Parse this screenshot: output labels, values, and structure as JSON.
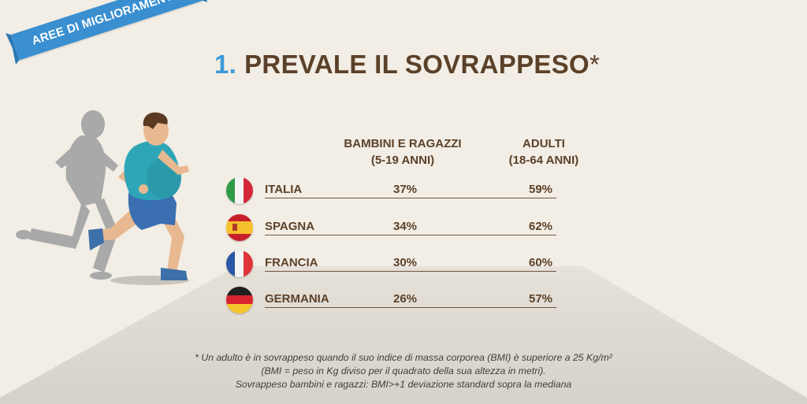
{
  "ribbon": {
    "label": "AREE DI MIGLIORAMENTO"
  },
  "title": {
    "number": "1.",
    "text": "PREVALE IL SOVRAPPESO",
    "asterisk": "*"
  },
  "columns": {
    "children": [
      "BAMBINI E RAGAZZI",
      "(5-19 ANNI)"
    ],
    "adults": [
      "ADULTI",
      "(18-64 ANNI)"
    ]
  },
  "rows": [
    {
      "country": "ITALIA",
      "children": "37%",
      "adults": "59%",
      "flag": "italy-flag-icon"
    },
    {
      "country": "SPAGNA",
      "children": "34%",
      "adults": "62%",
      "flag": "spain-flag-icon"
    },
    {
      "country": "FRANCIA",
      "children": "30%",
      "adults": "60%",
      "flag": "france-flag-icon"
    },
    {
      "country": "GERMANIA",
      "children": "26%",
      "adults": "57%",
      "flag": "germany-flag-icon"
    }
  ],
  "footnote": [
    "* Un adulto è in sovrappeso quando il suo indice di massa corporea (BMI) è superiore a 25 Kg/m²",
    "(BMI = peso in Kg diviso per il quadrato della sua altezza in metri).",
    "Sovrappeso bambini e ragazzi: BMI>+1 deviazione standard sopra la mediana"
  ],
  "colors": {
    "background": "#f2ede5",
    "road": "#ddd8d0",
    "title": "#5b4129",
    "accent": "#3a9ad9",
    "ribbon": "#3a8fd0"
  }
}
